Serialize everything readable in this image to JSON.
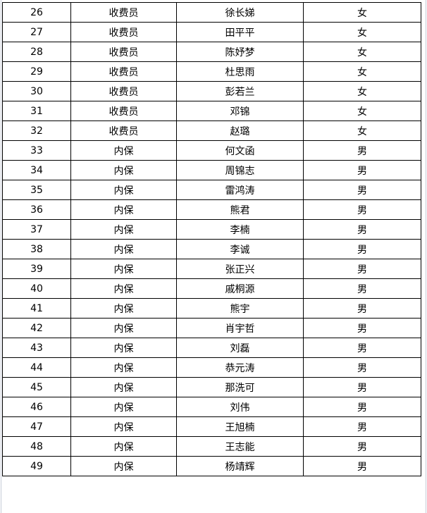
{
  "columns_hidden": false,
  "rows": [
    [
      "26",
      "收费员",
      "徐长娣",
      "女"
    ],
    [
      "27",
      "收费员",
      "田平平",
      "女"
    ],
    [
      "28",
      "收费员",
      "陈妤梦",
      "女"
    ],
    [
      "29",
      "收费员",
      "杜思雨",
      "女"
    ],
    [
      "30",
      "收费员",
      "彭若兰",
      "女"
    ],
    [
      "31",
      "收费员",
      "邓锦",
      "女"
    ],
    [
      "32",
      "收费员",
      "赵璐",
      "女"
    ],
    [
      "33",
      "内保",
      "何文函",
      "男"
    ],
    [
      "34",
      "内保",
      "周锦志",
      "男"
    ],
    [
      "35",
      "内保",
      "雷鸿涛",
      "男"
    ],
    [
      "36",
      "内保",
      "熊君",
      "男"
    ],
    [
      "37",
      "内保",
      "李楠",
      "男"
    ],
    [
      "38",
      "内保",
      "李诚",
      "男"
    ],
    [
      "39",
      "内保",
      "张正兴",
      "男"
    ],
    [
      "40",
      "内保",
      "戚桐源",
      "男"
    ],
    [
      "41",
      "内保",
      "熊宇",
      "男"
    ],
    [
      "42",
      "内保",
      "肖宇哲",
      "男"
    ],
    [
      "43",
      "内保",
      "刘磊",
      "男"
    ],
    [
      "44",
      "内保",
      "恭元涛",
      "男"
    ],
    [
      "45",
      "内保",
      "那洗可",
      "男"
    ],
    [
      "46",
      "内保",
      "刘伟",
      "男"
    ],
    [
      "47",
      "内保",
      "王旭楠",
      "男"
    ],
    [
      "48",
      "内保",
      "王志能",
      "男"
    ],
    [
      "49",
      "内保",
      "杨靖辉",
      "男"
    ]
  ]
}
